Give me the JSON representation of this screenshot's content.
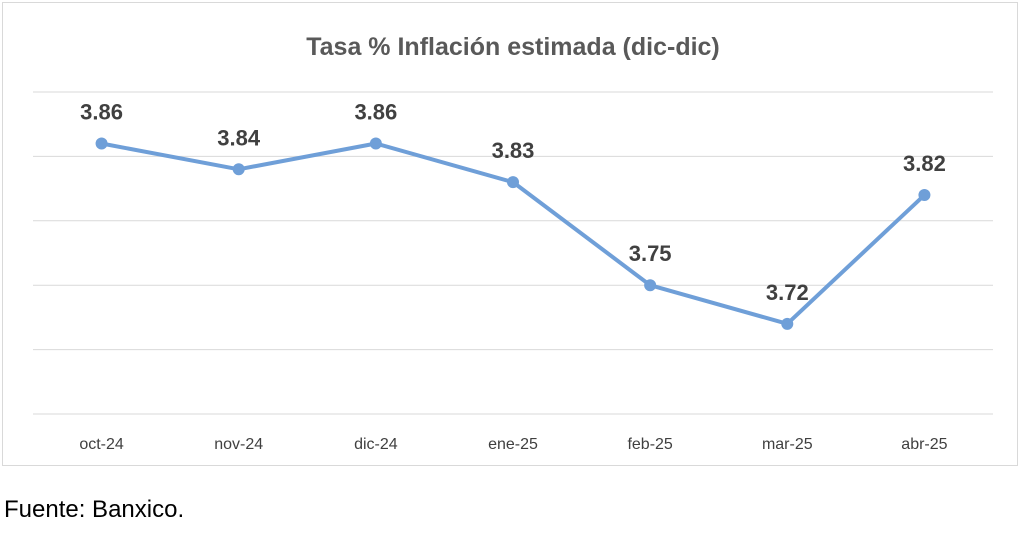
{
  "chart_data": {
    "type": "line",
    "title": "Tasa % Inflación estimada (dic-dic)",
    "categories": [
      "oct-24",
      "nov-24",
      "dic-24",
      "ene-25",
      "feb-25",
      "mar-25",
      "abr-25"
    ],
    "series": [
      {
        "values": [
          3.86,
          3.84,
          3.86,
          3.83,
          3.75,
          3.72,
          3.82
        ],
        "labels": [
          "3.86",
          "3.84",
          "3.86",
          "3.83",
          "3.75",
          "3.72",
          "3.82"
        ]
      }
    ],
    "ylim": [
      3.65,
      3.9
    ],
    "grid": true,
    "legend": "none",
    "colors": {
      "line": "#6f9fd8",
      "grid": "#d9d9d9"
    }
  },
  "source_note": "Fuente: Banxico."
}
